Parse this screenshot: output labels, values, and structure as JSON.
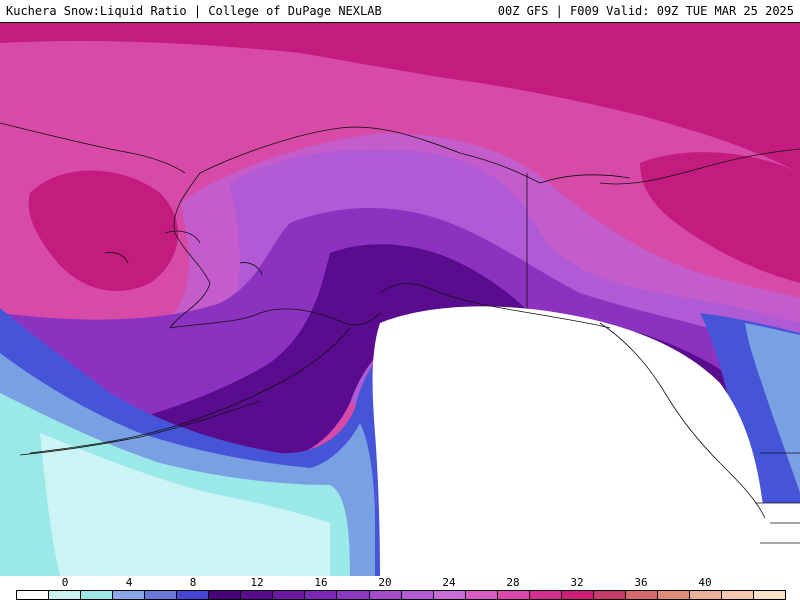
{
  "header": {
    "left_text": "Kuchera Snow:Liquid Ratio | College of DuPage NEXLAB",
    "right_text": "00Z GFS | F009 Valid: 09Z TUE MAR 25 2025"
  },
  "colorbar": {
    "tick_labels": [
      "0",
      "4",
      "8",
      "12",
      "16",
      "20",
      "24",
      "28",
      "32",
      "36",
      "40"
    ],
    "colors": [
      "#ffffff",
      "#c8f2f2",
      "#9ee6e6",
      "#8aa8e6",
      "#6a78dc",
      "#4646d2",
      "#4a007a",
      "#5a0a8c",
      "#6a18a0",
      "#7a28b4",
      "#8c38c2",
      "#a24ccc",
      "#b65ed6",
      "#c86ed8",
      "#d65cc4",
      "#dc48ac",
      "#d42e90",
      "#cc2076",
      "#c83a6a",
      "#d66a6a",
      "#e08a78",
      "#ecb098",
      "#f4c8ac",
      "#fae0c8"
    ]
  },
  "map": {
    "colors": {
      "background": "#d84aa8",
      "deep_magenta": "#c41c7e",
      "mid_magenta": "#d44a9e",
      "pink_purple": "#c45ccc",
      "lavender": "#b05ad6",
      "purple": "#8c32c0",
      "dark_purple": "#5a0c8e",
      "blue": "#4654d8",
      "light_blue": "#7aa0e4",
      "cyan": "#9ae8e8",
      "pale_cyan": "#cdf4f4",
      "rain_white": "#ffffff",
      "coastline": "#111111"
    }
  }
}
